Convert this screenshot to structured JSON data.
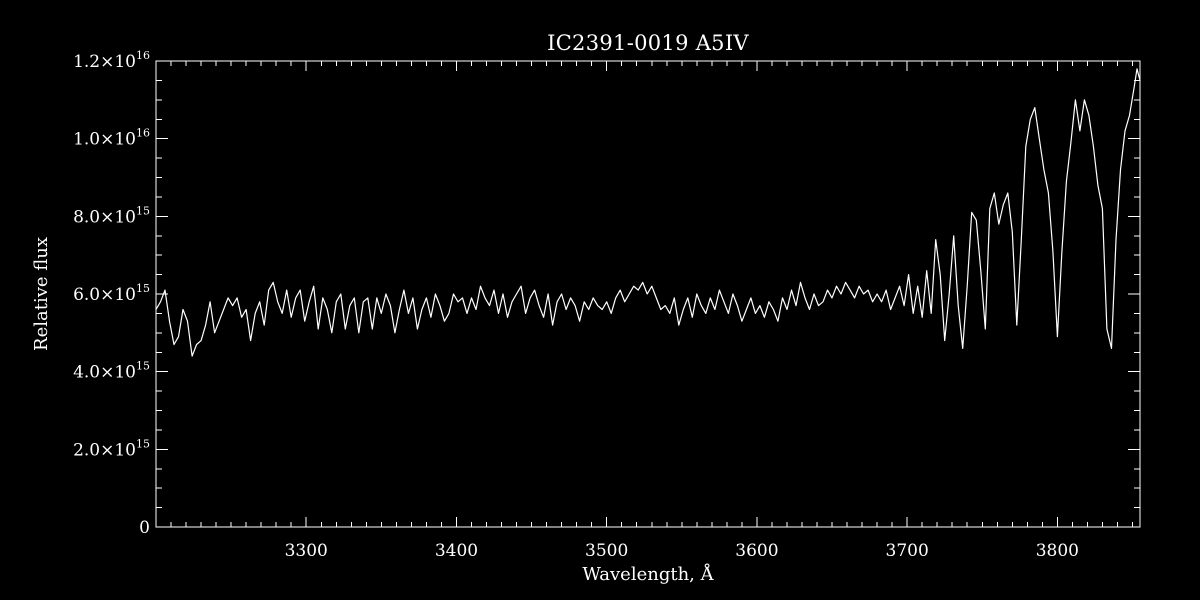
{
  "chart_data": {
    "type": "line",
    "title": "IC2391-0019   A5IV",
    "xlabel": "Wavelength, Å",
    "ylabel": "Relative flux",
    "xlim": [
      3200,
      3855
    ],
    "ylim": [
      0,
      1.2e+16
    ],
    "x_major_ticks": [
      3300,
      3400,
      3500,
      3600,
      3700,
      3800
    ],
    "x_tick_labels": [
      "3300",
      "3400",
      "3500",
      "3600",
      "3700",
      "3800"
    ],
    "x_minor_step": 10,
    "y_major_ticks": [
      0,
      2000000000000000.0,
      4000000000000000.0,
      6000000000000000.0,
      8000000000000000.0,
      1e+16,
      1.2e+16
    ],
    "y_tick_labels": [
      {
        "mantissa": "0",
        "exponent": ""
      },
      {
        "mantissa": "2.0×10",
        "exponent": "15"
      },
      {
        "mantissa": "4.0×10",
        "exponent": "15"
      },
      {
        "mantissa": "6.0×10",
        "exponent": "15"
      },
      {
        "mantissa": "8.0×10",
        "exponent": "15"
      },
      {
        "mantissa": "1.0×10",
        "exponent": "16"
      },
      {
        "mantissa": "1.2×10",
        "exponent": "16"
      }
    ],
    "y_minor_step": 500000000000000.0,
    "series": [
      {
        "color": "#ffffff",
        "x": [
          3200,
          3203,
          3206,
          3209,
          3212,
          3215,
          3218,
          3221,
          3224,
          3227,
          3230,
          3233,
          3236,
          3239,
          3242,
          3245,
          3248,
          3251,
          3254,
          3257,
          3260,
          3263,
          3266,
          3269,
          3272,
          3275,
          3278,
          3281,
          3284,
          3287,
          3290,
          3293,
          3296,
          3299,
          3302,
          3305,
          3308,
          3311,
          3314,
          3317,
          3320,
          3323,
          3326,
          3329,
          3332,
          3335,
          3338,
          3341,
          3344,
          3347,
          3350,
          3353,
          3356,
          3359,
          3362,
          3365,
          3368,
          3371,
          3374,
          3377,
          3380,
          3383,
          3386,
          3389,
          3392,
          3395,
          3398,
          3401,
          3404,
          3407,
          3410,
          3413,
          3416,
          3419,
          3422,
          3425,
          3428,
          3431,
          3434,
          3437,
          3440,
          3443,
          3446,
          3449,
          3452,
          3455,
          3458,
          3461,
          3464,
          3467,
          3470,
          3473,
          3476,
          3479,
          3482,
          3485,
          3488,
          3491,
          3494,
          3497,
          3500,
          3503,
          3506,
          3509,
          3512,
          3515,
          3518,
          3521,
          3524,
          3527,
          3530,
          3533,
          3536,
          3539,
          3542,
          3545,
          3548,
          3551,
          3554,
          3557,
          3560,
          3563,
          3566,
          3569,
          3572,
          3575,
          3578,
          3581,
          3584,
          3587,
          3590,
          3593,
          3596,
          3599,
          3602,
          3605,
          3608,
          3611,
          3614,
          3617,
          3620,
          3623,
          3626,
          3629,
          3632,
          3635,
          3638,
          3641,
          3644,
          3647,
          3650,
          3653,
          3656,
          3659,
          3662,
          3665,
          3668,
          3671,
          3674,
          3677,
          3680,
          3683,
          3686,
          3689,
          3692,
          3695,
          3698,
          3701,
          3704,
          3707,
          3710,
          3713,
          3716,
          3719,
          3722,
          3725,
          3728,
          3731,
          3734,
          3737,
          3740,
          3743,
          3746,
          3749,
          3752,
          3755,
          3758,
          3761,
          3764,
          3767,
          3770,
          3773,
          3776,
          3779,
          3782,
          3785,
          3788,
          3791,
          3794,
          3797,
          3800,
          3803,
          3806,
          3809,
          3812,
          3815,
          3818,
          3821,
          3824,
          3827,
          3830,
          3833,
          3836,
          3839,
          3842,
          3845,
          3848,
          3851,
          3853,
          3855
        ],
        "y": [
          5600000000000000.0,
          5800000000000000.0,
          6100000000000000.0,
          5300000000000000.0,
          4700000000000000.0,
          4900000000000000.0,
          5600000000000000.0,
          5300000000000000.0,
          4400000000000000.0,
          4700000000000000.0,
          4800000000000000.0,
          5200000000000000.0,
          5800000000000000.0,
          5000000000000000.0,
          5300000000000000.0,
          5600000000000000.0,
          5900000000000000.0,
          5700000000000000.0,
          5900000000000000.0,
          5400000000000000.0,
          5600000000000000.0,
          4800000000000000.0,
          5500000000000000.0,
          5800000000000000.0,
          5200000000000000.0,
          6100000000000000.0,
          6300000000000000.0,
          5800000000000000.0,
          5500000000000000.0,
          6100000000000000.0,
          5400000000000000.0,
          5900000000000000.0,
          6100000000000000.0,
          5300000000000000.0,
          5800000000000000.0,
          6200000000000000.0,
          5100000000000000.0,
          5900000000000000.0,
          5600000000000000.0,
          5000000000000000.0,
          5800000000000000.0,
          6000000000000000.0,
          5100000000000000.0,
          5700000000000000.0,
          5900000000000000.0,
          5000000000000000.0,
          5800000000000000.0,
          5900000000000000.0,
          5100000000000000.0,
          5900000000000000.0,
          5500000000000000.0,
          6000000000000000.0,
          5700000000000000.0,
          5000000000000000.0,
          5600000000000000.0,
          6100000000000000.0,
          5500000000000000.0,
          5900000000000000.0,
          5100000000000000.0,
          5600000000000000.0,
          5900000000000000.0,
          5400000000000000.0,
          6000000000000000.0,
          5700000000000000.0,
          5300000000000000.0,
          5500000000000000.0,
          6000000000000000.0,
          5800000000000000.0,
          5900000000000000.0,
          5500000000000000.0,
          5900000000000000.0,
          5600000000000000.0,
          6200000000000000.0,
          5900000000000000.0,
          5700000000000000.0,
          6100000000000000.0,
          5500000000000000.0,
          6000000000000000.0,
          5400000000000000.0,
          5800000000000000.0,
          6000000000000000.0,
          6200000000000000.0,
          5500000000000000.0,
          5900000000000000.0,
          6100000000000000.0,
          5700000000000000.0,
          5400000000000000.0,
          6000000000000000.0,
          5200000000000000.0,
          5800000000000000.0,
          6000000000000000.0,
          5600000000000000.0,
          5900000000000000.0,
          5700000000000000.0,
          5300000000000000.0,
          5800000000000000.0,
          5600000000000000.0,
          5900000000000000.0,
          5700000000000000.0,
          5600000000000000.0,
          5800000000000000.0,
          5500000000000000.0,
          5900000000000000.0,
          6100000000000000.0,
          5800000000000000.0,
          6000000000000000.0,
          6200000000000000.0,
          6100000000000000.0,
          6300000000000000.0,
          6000000000000000.0,
          6200000000000000.0,
          5900000000000000.0,
          5600000000000000.0,
          5700000000000000.0,
          5500000000000000.0,
          5900000000000000.0,
          5200000000000000.0,
          5600000000000000.0,
          5900000000000000.0,
          5400000000000000.0,
          6000000000000000.0,
          5700000000000000.0,
          5500000000000000.0,
          5900000000000000.0,
          5600000000000000.0,
          6100000000000000.0,
          5800000000000000.0,
          5500000000000000.0,
          6000000000000000.0,
          5700000000000000.0,
          5300000000000000.0,
          5600000000000000.0,
          5900000000000000.0,
          5500000000000000.0,
          5700000000000000.0,
          5400000000000000.0,
          5800000000000000.0,
          5600000000000000.0,
          5300000000000000.0,
          5900000000000000.0,
          5600000000000000.0,
          6100000000000000.0,
          5700000000000000.0,
          6300000000000000.0,
          5900000000000000.0,
          5600000000000000.0,
          6000000000000000.0,
          5700000000000000.0,
          5800000000000000.0,
          6100000000000000.0,
          5900000000000000.0,
          6200000000000000.0,
          6000000000000000.0,
          6300000000000000.0,
          6100000000000000.0,
          5900000000000000.0,
          6200000000000000.0,
          6000000000000000.0,
          6100000000000000.0,
          5800000000000000.0,
          6000000000000000.0,
          5800000000000000.0,
          6100000000000000.0,
          5600000000000000.0,
          5900000000000000.0,
          6200000000000000.0,
          5700000000000000.0,
          6500000000000000.0,
          5500000000000000.0,
          6200000000000000.0,
          5400000000000000.0,
          6600000000000000.0,
          5500000000000000.0,
          7400000000000000.0,
          6500000000000000.0,
          4800000000000000.0,
          6000000000000000.0,
          7500000000000000.0,
          5700000000000000.0,
          4600000000000000.0,
          6200000000000000.0,
          8100000000000000.0,
          7900000000000000.0,
          6600000000000000.0,
          5100000000000000.0,
          8200000000000000.0,
          8600000000000000.0,
          7800000000000000.0,
          8300000000000000.0,
          8600000000000000.0,
          7600000000000000.0,
          5200000000000000.0,
          7400000000000000.0,
          9800000000000000.0,
          1.05e+16,
          1.08e+16,
          1e+16,
          9200000000000000.0,
          8600000000000000.0,
          7100000000000000.0,
          4900000000000000.0,
          7100000000000000.0,
          8900000000000000.0,
          9900000000000000.0,
          1.1e+16,
          1.02e+16,
          1.1e+16,
          1.06e+16,
          9800000000000000.0,
          8800000000000000.0,
          8200000000000000.0,
          5100000000000000.0,
          4600000000000000.0,
          7400000000000000.0,
          9200000000000000.0,
          1.02e+16,
          1.06e+16,
          1.13e+16,
          1.18e+16,
          1.15e+16
        ]
      }
    ]
  }
}
